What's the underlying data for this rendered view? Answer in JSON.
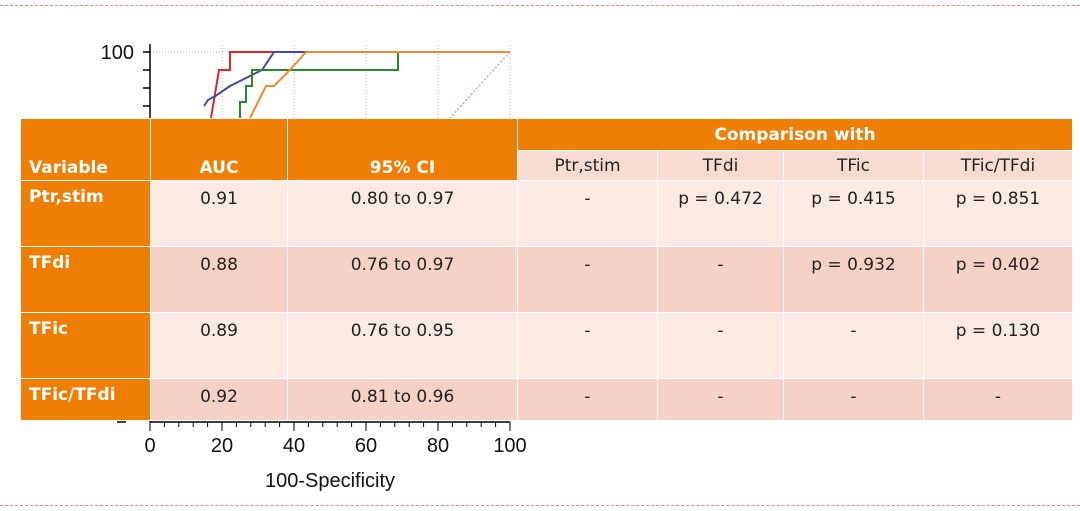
{
  "roc_chart": {
    "y_tick_labels": [
      "100"
    ],
    "x_tick_labels": [
      "0",
      "20",
      "40",
      "60",
      "80",
      "100"
    ],
    "xlabel": "100-Specificity",
    "colors": {
      "red": "#e0232a",
      "blue": "#44499a",
      "green": "#2a8a2a",
      "orange": "#f28a2e",
      "diagonal": "#e07878"
    }
  },
  "table": {
    "comparison_header": "Comparison with",
    "col_variable": "Variable",
    "col_auc": "AUC",
    "col_ci": "95% CI",
    "comparison_cols": [
      "Ptr,stim",
      "TFdi",
      "TFic",
      "TFic/TFdi"
    ],
    "rows": [
      {
        "variable": "Ptr,stim",
        "auc": "0.91",
        "ci": "0.80 to 0.97",
        "c1": "-",
        "c2": "p = 0.472",
        "c3": "p = 0.415",
        "c4": "p = 0.851"
      },
      {
        "variable": "TFdi",
        "auc": "0.88",
        "ci": "0.76 to 0.97",
        "c1": "-",
        "c2": "-",
        "c3": "p = 0.932",
        "c4": "p = 0.402"
      },
      {
        "variable": "TFic",
        "auc": "0.89",
        "ci": "0.76 to 0.95",
        "c1": "-",
        "c2": "-",
        "c3": "-",
        "c4": "p = 0.130"
      },
      {
        "variable": "TFic/TFdi",
        "auc": "0.92",
        "ci": "0.81 to 0.96",
        "c1": "-",
        "c2": "-",
        "c3": "-",
        "c4": "-"
      }
    ],
    "colors": {
      "orange": "#ef7e05",
      "light_row": "#fbe9e4",
      "dark_row": "#f6d2c6"
    }
  }
}
